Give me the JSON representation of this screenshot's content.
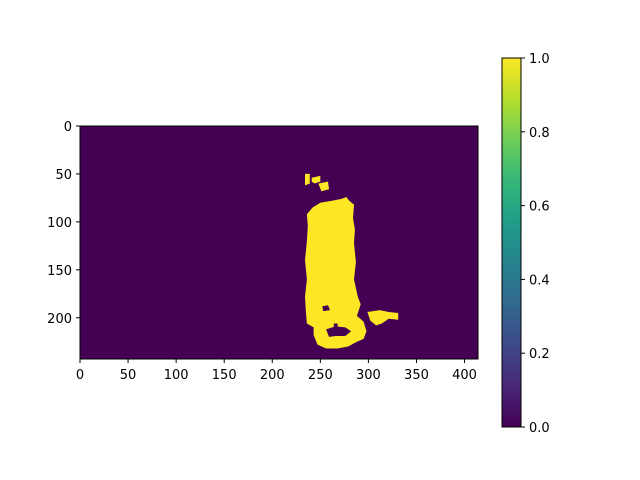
{
  "chart_data": {
    "type": "heatmap",
    "title": "",
    "xlabel": "",
    "ylabel": "",
    "image_shape": {
      "rows": 243,
      "cols": 414
    },
    "xlim": [
      0,
      414
    ],
    "ylim": [
      243,
      0
    ],
    "x_ticks": [
      0,
      50,
      100,
      150,
      200,
      250,
      300,
      350,
      400
    ],
    "y_ticks": [
      0,
      50,
      100,
      150,
      200
    ],
    "colormap": "viridis",
    "background_value": 0,
    "mask_value": 1,
    "mask_color": "#fde725",
    "background_color": "#440154",
    "colorbar": {
      "range": [
        0.0,
        1.0
      ],
      "ticks": [
        "0.0",
        "0.2",
        "0.4",
        "0.6",
        "0.8",
        "1.0"
      ],
      "colors": [
        "#440154",
        "#482878",
        "#3e4989",
        "#31688e",
        "#26828e",
        "#1f9e89",
        "#35b779",
        "#6ece58",
        "#b5de2b",
        "#fde725"
      ]
    },
    "mask_regions": [
      {
        "name": "main-body",
        "points": [
          [
            236,
            92
          ],
          [
            242,
            85
          ],
          [
            250,
            80
          ],
          [
            262,
            78
          ],
          [
            272,
            76
          ],
          [
            277,
            74
          ],
          [
            280,
            78
          ],
          [
            285,
            82
          ],
          [
            284,
            96
          ],
          [
            286,
            108
          ],
          [
            285,
            122
          ],
          [
            287,
            142
          ],
          [
            285,
            160
          ],
          [
            289,
            178
          ],
          [
            292,
            186
          ],
          [
            288,
            198
          ],
          [
            295,
            204
          ],
          [
            298,
            214
          ],
          [
            295,
            222
          ],
          [
            288,
            225
          ],
          [
            279,
            230
          ],
          [
            268,
            232
          ],
          [
            256,
            232
          ],
          [
            247,
            228
          ],
          [
            243,
            218
          ],
          [
            243,
            210
          ],
          [
            236,
            206
          ],
          [
            235,
            194
          ],
          [
            234,
            178
          ],
          [
            236,
            160
          ],
          [
            234,
            140
          ],
          [
            236,
            120
          ],
          [
            237,
            104
          ]
        ]
      },
      {
        "name": "top-speck-1",
        "points": [
          [
            234,
            50
          ],
          [
            239,
            50
          ],
          [
            239,
            60
          ],
          [
            234,
            62
          ]
        ]
      },
      {
        "name": "top-speck-2",
        "points": [
          [
            241,
            54
          ],
          [
            250,
            52
          ],
          [
            250,
            58
          ],
          [
            244,
            60
          ],
          [
            241,
            58
          ]
        ]
      },
      {
        "name": "top-speck-3",
        "points": [
          [
            248,
            60
          ],
          [
            258,
            58
          ],
          [
            259,
            66
          ],
          [
            251,
            68
          ]
        ]
      },
      {
        "name": "right-blob",
        "points": [
          [
            299,
            194
          ],
          [
            312,
            192
          ],
          [
            321,
            194
          ],
          [
            331,
            195
          ],
          [
            331,
            202
          ],
          [
            321,
            201
          ],
          [
            314,
            206
          ],
          [
            308,
            208
          ],
          [
            302,
            203
          ]
        ]
      }
    ],
    "holes": [
      {
        "name": "hole-1",
        "points": [
          [
            256,
            212
          ],
          [
            266,
            209
          ],
          [
            276,
            210
          ],
          [
            282,
            214
          ],
          [
            276,
            219
          ],
          [
            266,
            219
          ],
          [
            259,
            220
          ]
        ]
      },
      {
        "name": "hole-2",
        "points": [
          [
            252,
            188
          ],
          [
            258,
            187
          ],
          [
            260,
            192
          ],
          [
            253,
            193
          ]
        ]
      },
      {
        "name": "hole-3",
        "points": [
          [
            264,
            206
          ],
          [
            268,
            206
          ],
          [
            268,
            210
          ],
          [
            264,
            210
          ]
        ]
      }
    ]
  }
}
